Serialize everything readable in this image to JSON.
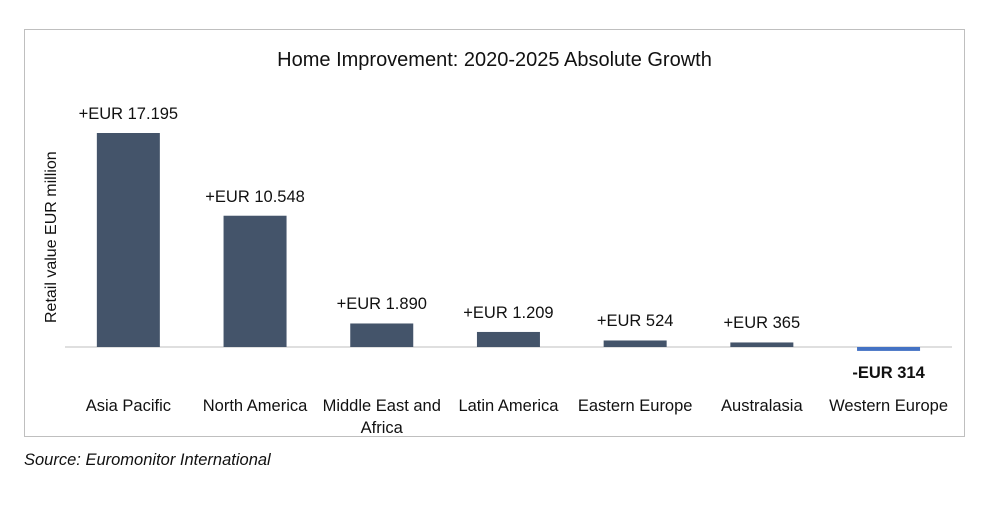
{
  "chart_data": {
    "type": "bar",
    "title": "Home Improvement: 2020-2025 Absolute Growth",
    "ylabel": "Retail value EUR million",
    "xlabel": "",
    "categories": [
      "Asia Pacific",
      "North America",
      "Middle East and Africa",
      "Latin America",
      "Eastern Europe",
      "Australasia",
      "Western Europe"
    ],
    "values": [
      17195,
      10548,
      1890,
      1209,
      524,
      365,
      -314
    ],
    "data_labels": [
      "+EUR 17.195",
      "+EUR 10.548",
      "+EUR 1.890",
      "+EUR 1.209",
      "+EUR 524",
      "+EUR 365",
      "-EUR 314"
    ],
    "ylim": [
      -2500,
      17195
    ],
    "grid": false,
    "colors": {
      "positive": "#44546a",
      "negative": "#4472c4",
      "axis": "#bfbfbf"
    }
  },
  "source": "Source: Euromonitor International"
}
